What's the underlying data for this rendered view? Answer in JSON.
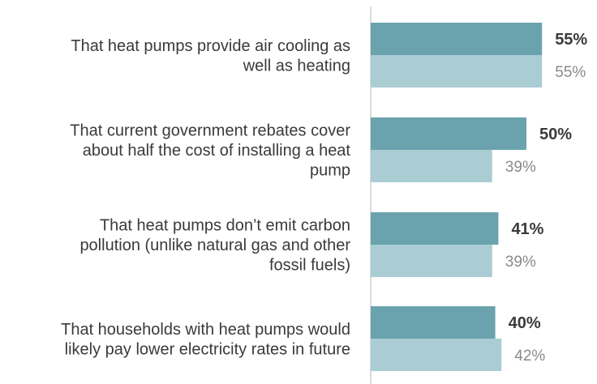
{
  "chart_data": {
    "type": "bar",
    "orientation": "horizontal",
    "categories": [
      [
        "That heat pumps provide air cooling as",
        "well as heating"
      ],
      [
        "That current government rebates cover",
        "about half the cost of installing a heat",
        "pump"
      ],
      [
        "That heat pumps don’t emit carbon",
        "pollution (unlike natural gas and other",
        "fossil fuels)"
      ],
      [
        "That households with heat pumps would",
        "likely pay lower electricity rates in future"
      ]
    ],
    "series": [
      {
        "values": [
          55,
          50,
          41,
          40
        ],
        "labels": [
          "55%",
          "50%",
          "41%",
          "40%"
        ],
        "color": "#6aa3ad"
      },
      {
        "values": [
          55,
          39,
          39,
          42
        ],
        "labels": [
          "55%",
          "39%",
          "39%",
          "42%"
        ],
        "color": "#a9cdd3"
      }
    ],
    "xlim": [
      0,
      100
    ],
    "grid": false,
    "legend": "none",
    "axis_line_color": "#cfcfcf"
  }
}
